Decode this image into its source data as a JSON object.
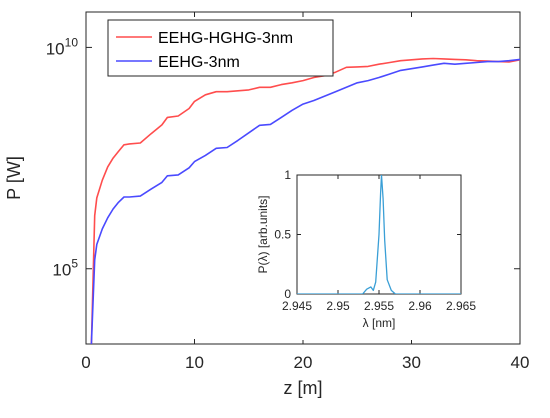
{
  "chart_data": [
    {
      "type": "line",
      "xlabel": "z [m]",
      "ylabel": "P [W]",
      "xlim": [
        0,
        40
      ],
      "ylim_log10": [
        3.3,
        10.8
      ],
      "yscale": "log",
      "xticks": [
        0,
        10,
        20,
        30,
        40
      ],
      "xtick_labels": [
        "0",
        "10",
        "20",
        "30",
        "40"
      ],
      "yticks_log10": [
        5,
        10
      ],
      "ytick_base": "10",
      "ytick_exponents": [
        "5",
        "10"
      ],
      "legend_position": "top-left",
      "series": [
        {
          "name": "EEHG-HGHG-3nm",
          "color": "#ff4d4d",
          "x": [
            0.5,
            0.8,
            1,
            1.5,
            2,
            2.5,
            3,
            3.5,
            4,
            5,
            6,
            7,
            7.5,
            8.5,
            9.5,
            10,
            11,
            12,
            13,
            14,
            15,
            16,
            17,
            18,
            19,
            20,
            21,
            22,
            23,
            24,
            25,
            26,
            27,
            28,
            29,
            30,
            31,
            32,
            33,
            34,
            35,
            36,
            37,
            38,
            39,
            40
          ],
          "y_log10": [
            3.3,
            6.2,
            6.6,
            7.0,
            7.3,
            7.5,
            7.65,
            7.8,
            7.82,
            7.84,
            8.05,
            8.25,
            8.42,
            8.45,
            8.62,
            8.78,
            8.93,
            9.0,
            9.0,
            9.02,
            9.04,
            9.1,
            9.1,
            9.16,
            9.2,
            9.25,
            9.32,
            9.36,
            9.44,
            9.55,
            9.56,
            9.57,
            9.62,
            9.66,
            9.7,
            9.72,
            9.74,
            9.75,
            9.74,
            9.73,
            9.72,
            9.7,
            9.69,
            9.68,
            9.67,
            9.72
          ]
        },
        {
          "name": "EEHG-3nm",
          "color": "#4a4aff",
          "x": [
            0.5,
            0.8,
            1,
            1.5,
            2,
            2.5,
            3,
            3.5,
            4,
            5,
            6,
            7,
            7.5,
            8.5,
            9.5,
            10,
            11,
            12,
            13,
            14,
            15,
            16,
            17,
            18,
            19,
            20,
            21,
            22,
            23,
            24,
            25,
            26,
            27,
            28,
            29,
            30,
            31,
            32,
            33,
            34,
            35,
            36,
            37,
            38,
            39,
            40
          ],
          "y_log10": [
            3.3,
            5.2,
            5.55,
            5.9,
            6.15,
            6.35,
            6.5,
            6.62,
            6.62,
            6.64,
            6.8,
            6.95,
            7.1,
            7.12,
            7.28,
            7.42,
            7.56,
            7.72,
            7.74,
            7.9,
            8.07,
            8.24,
            8.26,
            8.42,
            8.58,
            8.72,
            8.8,
            8.9,
            9.0,
            9.1,
            9.2,
            9.25,
            9.32,
            9.4,
            9.48,
            9.52,
            9.56,
            9.6,
            9.64,
            9.62,
            9.64,
            9.66,
            9.68,
            9.68,
            9.7,
            9.73
          ]
        }
      ]
    },
    {
      "type": "line",
      "xlabel": "λ [nm]",
      "ylabel": "P(λ) [arb.units]",
      "xlim": [
        2.945,
        2.965
      ],
      "ylim": [
        0,
        1
      ],
      "xticks": [
        2.945,
        2.95,
        2.955,
        2.96,
        2.965
      ],
      "xtick_labels": [
        "2.945",
        "2.95",
        "2.955",
        "2.96",
        "2.965"
      ],
      "yticks": [
        0,
        0.5,
        1
      ],
      "ytick_labels": [
        "0",
        "0.5",
        "1"
      ],
      "series": [
        {
          "color": "#3a9fd6",
          "x": [
            2.945,
            2.953,
            2.9535,
            2.954,
            2.9543,
            2.9546,
            2.955,
            2.9552,
            2.9553,
            2.9555,
            2.9557,
            2.956,
            2.9565,
            2.957,
            2.965
          ],
          "y": [
            0,
            0,
            0.04,
            0.06,
            0.03,
            0.1,
            0.5,
            0.85,
            1.0,
            0.8,
            0.45,
            0.12,
            0.03,
            0.0,
            0
          ]
        }
      ]
    }
  ]
}
